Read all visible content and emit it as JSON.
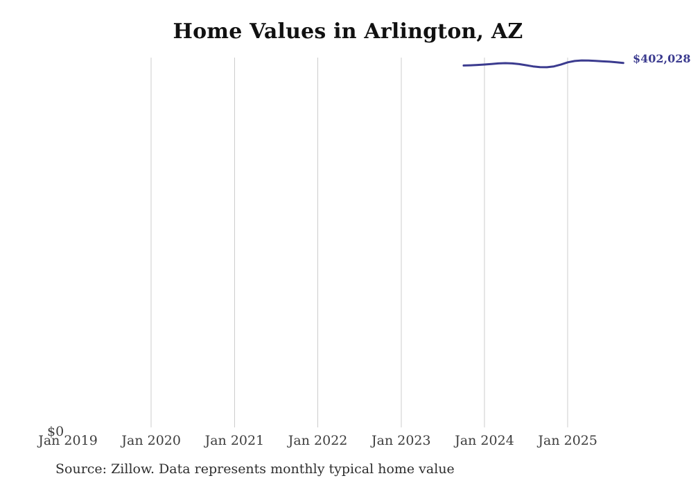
{
  "page": {
    "background_color": "#ffffff"
  },
  "chart_data": {
    "type": "line",
    "title": "Home Values in Arlington, AZ",
    "xlabel": "",
    "ylabel": "",
    "y_zero_label": "$0",
    "last_value_label": "$402,028",
    "line_color": "#3b3b8f",
    "grid_color": "#cccccc",
    "tick_label_color": "#3d3d3d",
    "legend": "none",
    "grid": "vertical-only",
    "x_ticks": [
      {
        "label": "Jan 2019",
        "year": 2019,
        "gridline": false
      },
      {
        "label": "Jan 2020",
        "year": 2020,
        "gridline": true
      },
      {
        "label": "Jan 2021",
        "year": 2021,
        "gridline": true
      },
      {
        "label": "Jan 2022",
        "year": 2022,
        "gridline": true
      },
      {
        "label": "Jan 2023",
        "year": 2023,
        "gridline": true
      },
      {
        "label": "Jan 2024",
        "year": 2024,
        "gridline": true
      },
      {
        "label": "Jan 2025",
        "year": 2025,
        "gridline": true
      }
    ],
    "ylim": [
      0,
      406000
    ],
    "series": [
      {
        "name": "Monthly typical home value",
        "months": [
          "2023-10",
          "2023-11",
          "2023-12",
          "2024-01",
          "2024-02",
          "2024-03",
          "2024-04",
          "2024-05",
          "2024-06",
          "2024-07",
          "2024-08",
          "2024-09",
          "2024-10",
          "2024-11",
          "2024-12",
          "2025-01",
          "2025-02",
          "2025-03",
          "2025-04",
          "2025-05",
          "2025-06",
          "2025-07",
          "2025-08",
          "2025-09"
        ],
        "values": [
          399200,
          399400,
          399800,
          400300,
          400900,
          401500,
          401800,
          401500,
          400700,
          399500,
          398200,
          397400,
          397300,
          398200,
          400200,
          402700,
          404200,
          404800,
          404700,
          404300,
          403800,
          403400,
          402800,
          402028
        ]
      }
    ],
    "source_note": "Source: Zillow. Data represents monthly typical home value"
  }
}
